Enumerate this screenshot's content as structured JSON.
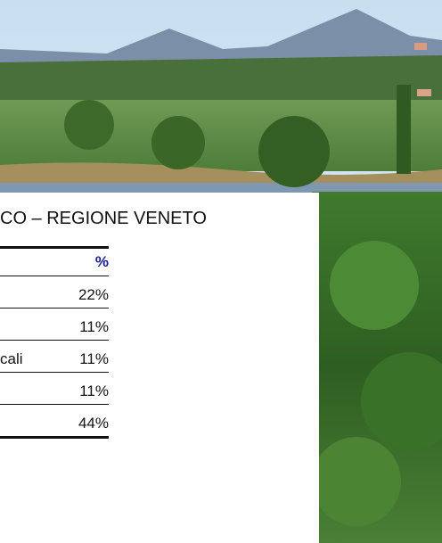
{
  "title": "CO – REGIONE VENETO",
  "table": {
    "header": "%",
    "rows": [
      [
        "22%"
      ],
      [
        "11%"
      ],
      [
        "cali",
        "11%"
      ],
      [
        "11%"
      ],
      [
        "44%"
      ]
    ]
  }
}
